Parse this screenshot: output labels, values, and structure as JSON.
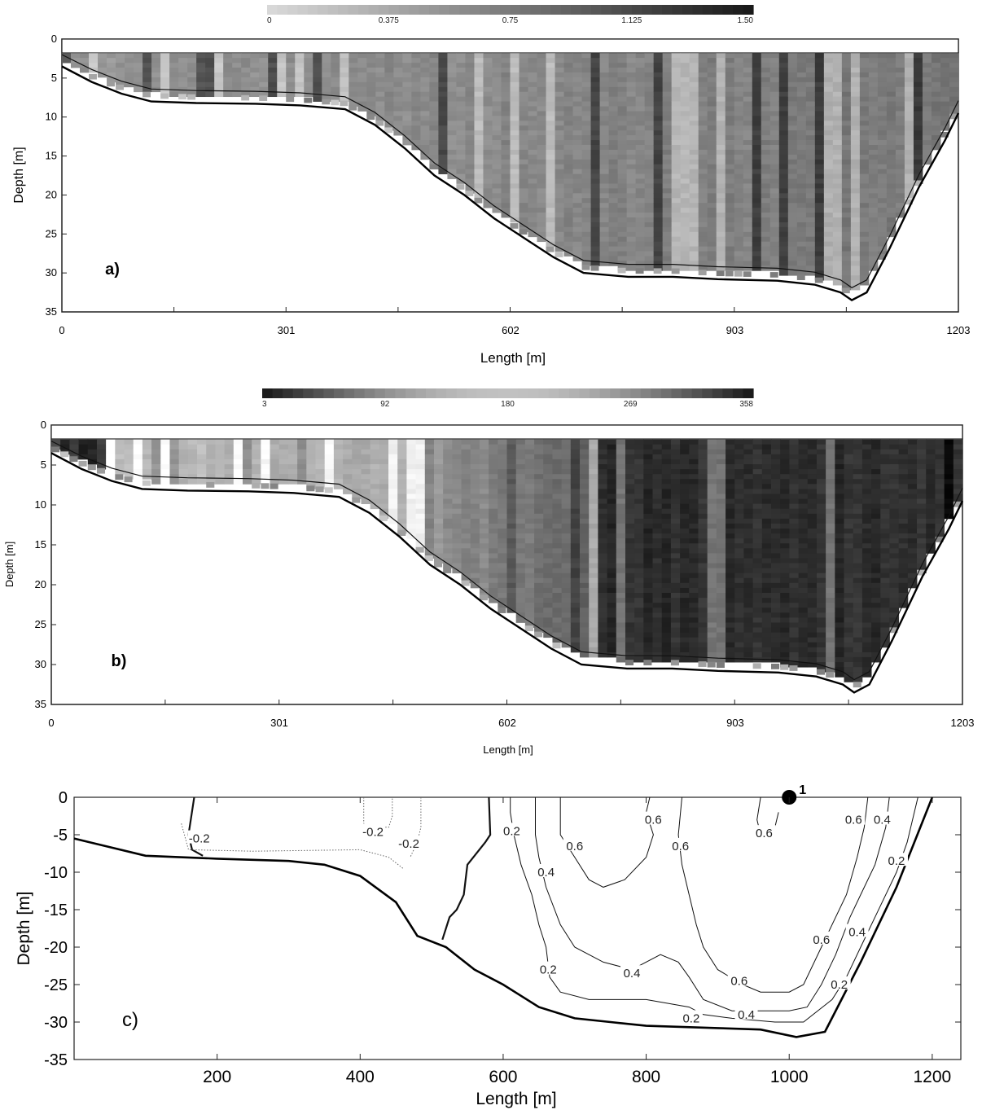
{
  "chart_data": [
    {
      "type": "heatmap",
      "panel_label": "a)",
      "colorbar": {
        "ticks": [
          "0",
          "0.375",
          "0.75",
          "1.125",
          "1.50"
        ],
        "range": [
          0,
          1.5
        ],
        "colors": {
          "low": "#d8d8d8",
          "high": "#1a1a1a"
        }
      },
      "xlabel": "Length [m]",
      "ylabel": "Depth [m]",
      "xticks": [
        "0",
        "301",
        "602",
        "903",
        "1203"
      ],
      "yticks": [
        "0",
        "5",
        "10",
        "15",
        "20",
        "25",
        "30",
        "35"
      ],
      "xlim": [
        0,
        1203
      ],
      "ylim": [
        35,
        0
      ],
      "bottom_profile": [
        [
          0,
          3.5
        ],
        [
          40,
          5.5
        ],
        [
          80,
          7
        ],
        [
          120,
          8
        ],
        [
          180,
          8.2
        ],
        [
          260,
          8.3
        ],
        [
          320,
          8.5
        ],
        [
          380,
          9
        ],
        [
          420,
          11
        ],
        [
          460,
          14
        ],
        [
          500,
          17.5
        ],
        [
          540,
          20
        ],
        [
          580,
          23
        ],
        [
          620,
          25.5
        ],
        [
          660,
          28
        ],
        [
          700,
          30
        ],
        [
          760,
          30.5
        ],
        [
          820,
          30.5
        ],
        [
          880,
          30.8
        ],
        [
          960,
          31
        ],
        [
          1010,
          31.5
        ],
        [
          1045,
          32.5
        ],
        [
          1060,
          33.5
        ],
        [
          1080,
          32.5
        ],
        [
          1110,
          27
        ],
        [
          1150,
          19
        ],
        [
          1185,
          13
        ],
        [
          1203,
          9.5
        ]
      ],
      "data_top_depth": 1.8
    },
    {
      "type": "heatmap",
      "panel_label": "b)",
      "colorbar": {
        "ticks": [
          "3",
          "92",
          "180",
          "269",
          "358"
        ],
        "range": [
          3,
          358
        ],
        "colors": {
          "ends": "#1a1a1a",
          "middle": "#bdbdbd"
        }
      },
      "xlabel": "Length [m]",
      "ylabel": "Depth [m]",
      "xticks": [
        "0",
        "301",
        "602",
        "903",
        "1203"
      ],
      "yticks": [
        "0",
        "5",
        "10",
        "15",
        "20",
        "25",
        "30",
        "35"
      ],
      "xlim": [
        0,
        1203
      ],
      "ylim": [
        35,
        0
      ],
      "data_top_depth": 1.8
    },
    {
      "type": "line",
      "panel_label": "c)",
      "xlabel": "Length [m]",
      "ylabel": "Depth [m]",
      "xticks": [
        "200",
        "400",
        "600",
        "800",
        "1000",
        "1200"
      ],
      "yticks": [
        "0",
        "-5",
        "-10",
        "-15",
        "-20",
        "-25",
        "-30",
        "-35"
      ],
      "xlim": [
        0,
        1240
      ],
      "ylim": [
        -35,
        0
      ],
      "marker": {
        "x": 1000,
        "y": 0,
        "label": "1"
      },
      "bottom": [
        [
          0,
          -5.5
        ],
        [
          100,
          -7.8
        ],
        [
          200,
          -8.2
        ],
        [
          300,
          -8.5
        ],
        [
          350,
          -9
        ],
        [
          400,
          -10.5
        ],
        [
          450,
          -14
        ],
        [
          480,
          -18.5
        ],
        [
          520,
          -20
        ],
        [
          560,
          -23
        ],
        [
          600,
          -25
        ],
        [
          650,
          -28
        ],
        [
          700,
          -29.5
        ],
        [
          750,
          -30
        ],
        [
          800,
          -30.5
        ],
        [
          900,
          -30.8
        ],
        [
          960,
          -31
        ],
        [
          1010,
          -32
        ],
        [
          1050,
          -31.3
        ],
        [
          1100,
          -22
        ],
        [
          1150,
          -12
        ],
        [
          1200,
          0
        ]
      ],
      "contours": [
        {
          "level": "0",
          "points": [
            [
              168,
              0
            ],
            [
              160,
              -5
            ],
            [
              165,
              -7
            ],
            [
              180,
              -7.8
            ]
          ]
        },
        {
          "level": "0",
          "points": [
            [
              580,
              0
            ],
            [
              582,
              -5
            ],
            [
              575,
              -6
            ],
            [
              550,
              -9
            ],
            [
              545,
              -13
            ],
            [
              535,
              -15
            ],
            [
              525,
              -16
            ],
            [
              520,
              -17.5
            ],
            [
              515,
              -19
            ]
          ]
        },
        {
          "level": "-0.2",
          "points": [
            [
              150,
              -3.5
            ],
            [
              160,
              -7
            ],
            [
              250,
              -7.2
            ],
            [
              400,
              -7
            ],
            [
              440,
              -8
            ],
            [
              460,
              -9.5
            ]
          ],
          "labels": [
            {
              "x": 175,
              "y": -5.5,
              "text": "-0.2"
            }
          ]
        },
        {
          "level": "-0.2",
          "points": [
            [
              405,
              0
            ],
            [
              405,
              -3.5
            ],
            [
              420,
              -4
            ],
            [
              440,
              -4
            ],
            [
              445,
              -2.5
            ],
            [
              445,
              0
            ]
          ],
          "labels": [
            {
              "x": 418,
              "y": -4.6,
              "text": "-0.2"
            }
          ]
        },
        {
          "level": "-0.2",
          "points": [
            [
              485,
              0
            ],
            [
              485,
              -4
            ],
            [
              480,
              -6
            ],
            [
              470,
              -8
            ]
          ],
          "labels": [
            {
              "x": 468,
              "y": -6.2,
              "text": "-0.2"
            }
          ]
        },
        {
          "level": "0.2",
          "points": [
            [
              610,
              0
            ],
            [
              610,
              -2
            ],
            [
              615,
              -5
            ],
            [
              625,
              -9
            ],
            [
              640,
              -13
            ],
            [
              650,
              -17
            ],
            [
              660,
              -20
            ],
            [
              665,
              -24
            ],
            [
              680,
              -26
            ],
            [
              720,
              -27
            ],
            [
              800,
              -27
            ],
            [
              860,
              -28
            ],
            [
              880,
              -29
            ],
            [
              920,
              -29.5
            ],
            [
              980,
              -30
            ],
            [
              1020,
              -30
            ],
            [
              1060,
              -27
            ],
            [
              1080,
              -24
            ],
            [
              1100,
              -20
            ],
            [
              1130,
              -14
            ],
            [
              1150,
              -10
            ],
            [
              1165,
              -6
            ],
            [
              1180,
              0
            ]
          ],
          "labels": [
            {
              "x": 612,
              "y": -4.5,
              "text": "0.2"
            },
            {
              "x": 663,
              "y": -23,
              "text": "0.2"
            },
            {
              "x": 863,
              "y": -29.5,
              "text": "0.2"
            },
            {
              "x": 1070,
              "y": -25,
              "text": "0.2"
            },
            {
              "x": 1150,
              "y": -8.5,
              "text": "0.2"
            }
          ]
        },
        {
          "level": "0.4",
          "points": [
            [
              645,
              0
            ],
            [
              645,
              -5
            ],
            [
              650,
              -8
            ],
            [
              660,
              -12
            ],
            [
              680,
              -17
            ],
            [
              700,
              -20
            ],
            [
              740,
              -22
            ],
            [
              780,
              -23
            ],
            [
              820,
              -21
            ],
            [
              845,
              -22
            ],
            [
              860,
              -24
            ],
            [
              880,
              -27
            ],
            [
              920,
              -28.5
            ],
            [
              960,
              -28.5
            ],
            [
              1000,
              -28.5
            ],
            [
              1025,
              -28
            ],
            [
              1045,
              -25
            ],
            [
              1065,
              -21
            ],
            [
              1085,
              -16
            ],
            [
              1100,
              -13
            ],
            [
              1120,
              -9
            ],
            [
              1135,
              -4
            ],
            [
              1140,
              0
            ]
          ],
          "labels": [
            {
              "x": 660,
              "y": -10,
              "text": "0.4"
            },
            {
              "x": 780,
              "y": -23.5,
              "text": "0.4"
            },
            {
              "x": 940,
              "y": -29,
              "text": "0.4"
            },
            {
              "x": 1095,
              "y": -18,
              "text": "0.4"
            },
            {
              "x": 1130,
              "y": -3,
              "text": "0.4"
            }
          ]
        },
        {
          "level": "0.6",
          "points": [
            [
              680,
              0
            ],
            [
              680,
              -5
            ],
            [
              700,
              -8
            ],
            [
              720,
              -11
            ],
            [
              740,
              -12
            ],
            [
              770,
              -11
            ],
            [
              800,
              -8
            ],
            [
              810,
              -5
            ],
            [
              800,
              -2
            ],
            [
              805,
              0
            ]
          ],
          "labels": [
            {
              "x": 700,
              "y": -6.5,
              "text": "0.6"
            },
            {
              "x": 810,
              "y": -3,
              "text": "0.6"
            }
          ]
        },
        {
          "level": "0.6",
          "points": [
            [
              850,
              0
            ],
            [
              845,
              -5
            ],
            [
              850,
              -9
            ],
            [
              860,
              -13
            ],
            [
              870,
              -17
            ],
            [
              880,
              -20
            ],
            [
              900,
              -23
            ],
            [
              935,
              -25
            ],
            [
              960,
              -26
            ],
            [
              1000,
              -26
            ],
            [
              1020,
              -25
            ],
            [
              1035,
              -22
            ],
            [
              1055,
              -18
            ],
            [
              1080,
              -13
            ],
            [
              1095,
              -8
            ],
            [
              1105,
              -4
            ],
            [
              1110,
              0
            ]
          ],
          "labels": [
            {
              "x": 848,
              "y": -6.5,
              "text": "0.6"
            },
            {
              "x": 930,
              "y": -24.5,
              "text": "0.6"
            },
            {
              "x": 1045,
              "y": -19,
              "text": "0.6"
            },
            {
              "x": 1090,
              "y": -3,
              "text": "0.6"
            }
          ]
        },
        {
          "level": "0.6",
          "points": [
            [
              960,
              0
            ],
            [
              955,
              -3
            ],
            [
              960,
              -5
            ],
            [
              980,
              -4
            ],
            [
              985,
              -2
            ]
          ],
          "labels": [
            {
              "x": 965,
              "y": -4.8,
              "text": "0.6"
            }
          ]
        }
      ]
    }
  ]
}
